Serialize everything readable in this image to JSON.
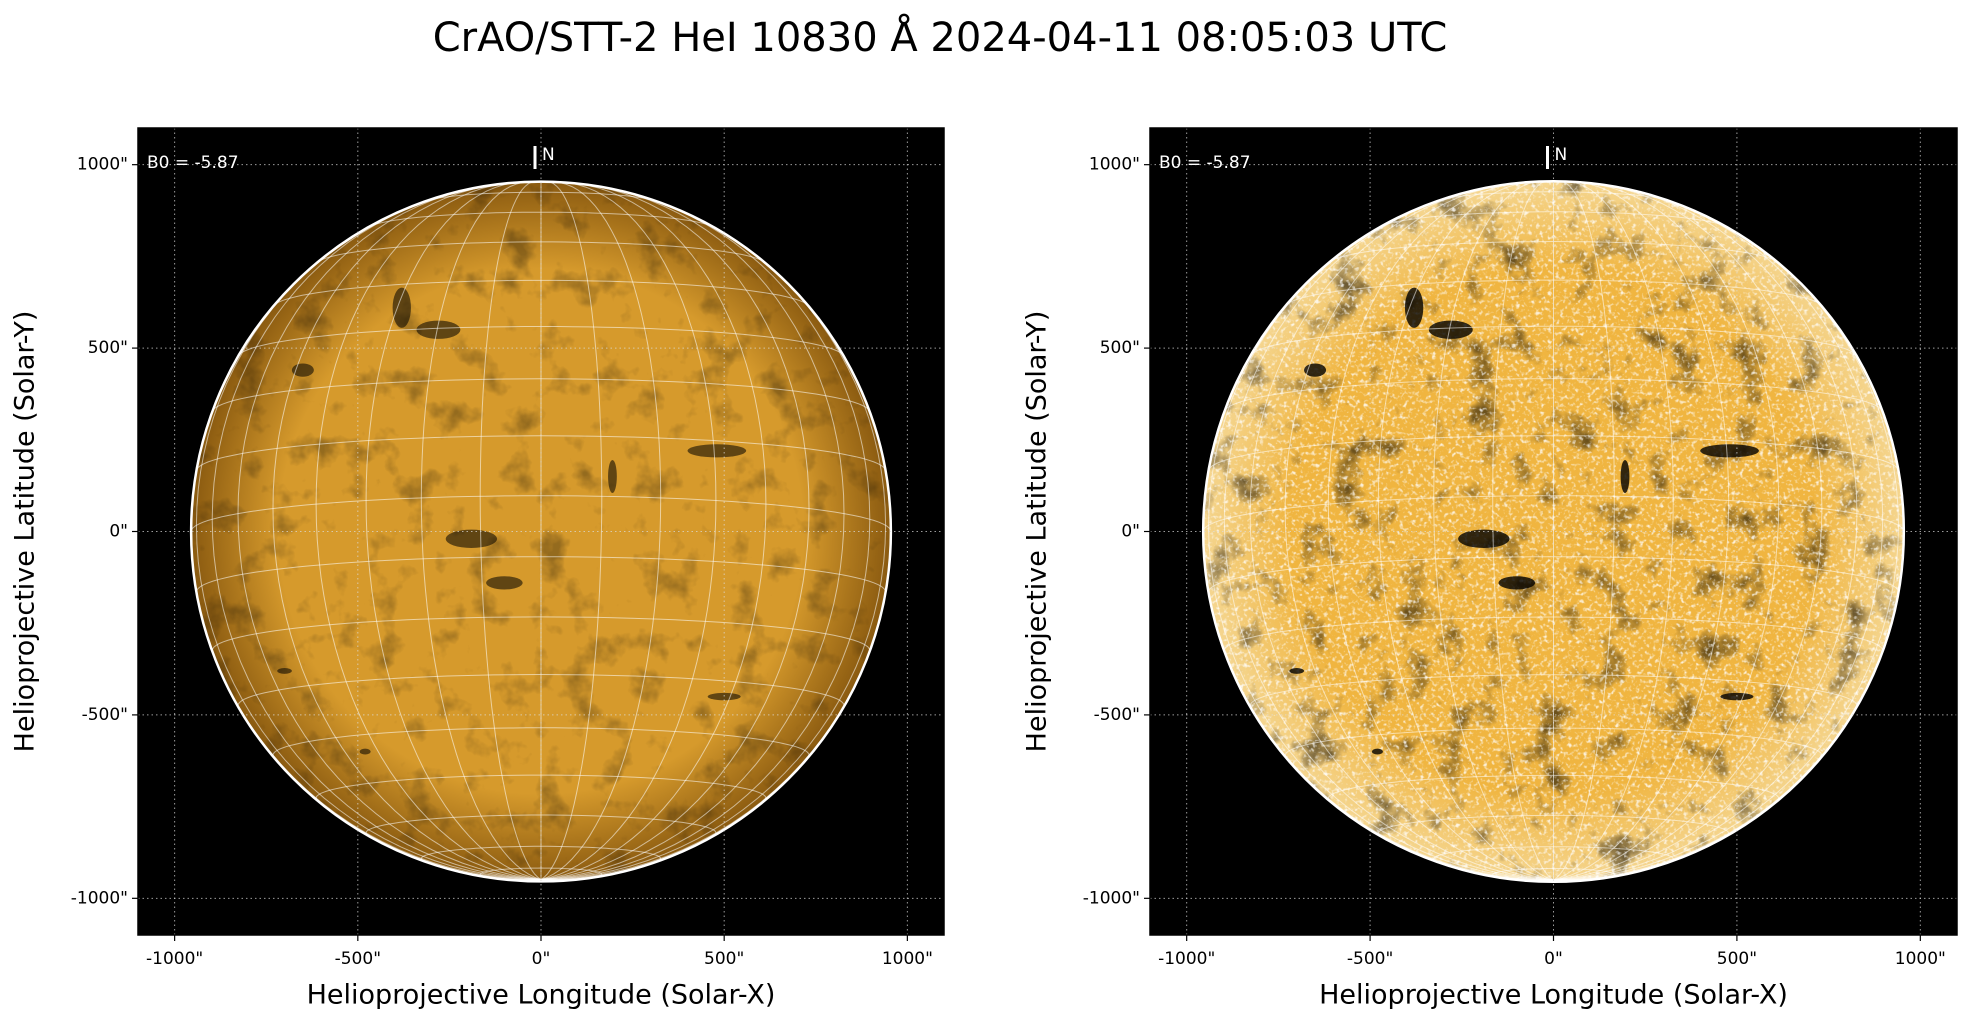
{
  "title": "CrAO/STT-2 HeI 10830 Å 2024-04-11 08:05:03 UTC",
  "chart_data": [
    {
      "type": "image",
      "annotation": "B0 = -5.87",
      "b0": -5.87,
      "north_label": "N",
      "xlabel": "Helioprojective Longitude (Solar-X)",
      "ylabel": "Helioprojective Latitude (Solar-Y)",
      "xlim": [
        -1100,
        1100
      ],
      "ylim": [
        -1100,
        1100
      ],
      "xticks": [
        {
          "value": -1000,
          "label": "-1000\""
        },
        {
          "value": -500,
          "label": "-500\""
        },
        {
          "value": 0,
          "label": "0\""
        },
        {
          "value": 500,
          "label": "500\""
        },
        {
          "value": 1000,
          "label": "1000\""
        }
      ],
      "yticks": [
        {
          "value": -1000,
          "label": "-1000\""
        },
        {
          "value": -500,
          "label": "-500\""
        },
        {
          "value": 0,
          "label": "0\""
        },
        {
          "value": 500,
          "label": "500\""
        },
        {
          "value": 1000,
          "label": "1000\""
        }
      ],
      "grid": true,
      "disk_radius": 955,
      "disk_color": "#d69a2c",
      "limb_color": "#8a5a10"
    },
    {
      "type": "image",
      "annotation": "B0 = -5.87",
      "b0": -5.87,
      "north_label": "N",
      "xlabel": "Helioprojective Longitude (Solar-X)",
      "ylabel": "Helioprojective Latitude (Solar-Y)",
      "xlim": [
        -1100,
        1100
      ],
      "ylim": [
        -1100,
        1100
      ],
      "xticks": [
        {
          "value": -1000,
          "label": "-1000\""
        },
        {
          "value": -500,
          "label": "-500\""
        },
        {
          "value": 0,
          "label": "0\""
        },
        {
          "value": 500,
          "label": "500\""
        },
        {
          "value": 1000,
          "label": "1000\""
        }
      ],
      "yticks": [
        {
          "value": -1000,
          "label": "-1000\""
        },
        {
          "value": -500,
          "label": "-500\""
        },
        {
          "value": 0,
          "label": "0\""
        },
        {
          "value": 500,
          "label": "500\""
        },
        {
          "value": 1000,
          "label": "1000\""
        }
      ],
      "grid": true,
      "disk_radius": 955,
      "disk_color": "#f0b540",
      "limb_color": "#f5d690"
    }
  ]
}
